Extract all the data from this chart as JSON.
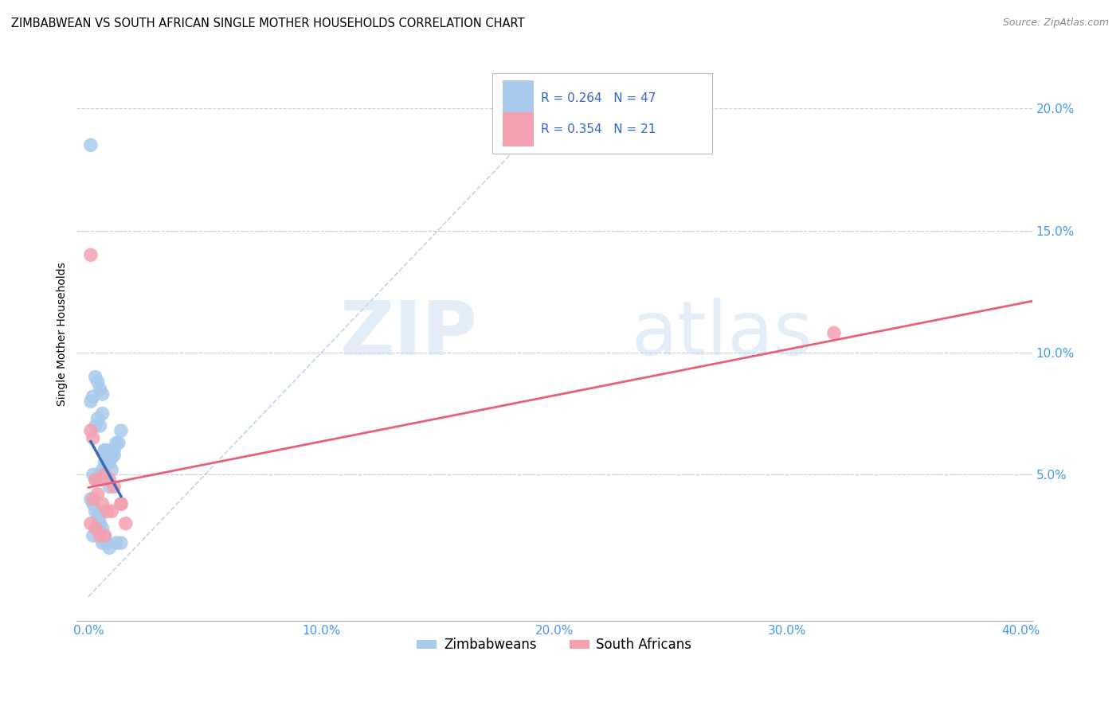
{
  "title": "ZIMBABWEAN VS SOUTH AFRICAN SINGLE MOTHER HOUSEHOLDS CORRELATION CHART",
  "source": "Source: ZipAtlas.com",
  "ylabel": "Single Mother Households",
  "xlim": [
    -0.005,
    0.405
  ],
  "ylim": [
    -0.01,
    0.225
  ],
  "xticks": [
    0.0,
    0.1,
    0.2,
    0.3,
    0.4
  ],
  "yticks": [
    0.05,
    0.1,
    0.15,
    0.2
  ],
  "xtick_labels": [
    "0.0%",
    "10.0%",
    "20.0%",
    "30.0%",
    "40.0%"
  ],
  "ytick_labels": [
    "5.0%",
    "10.0%",
    "15.0%",
    "20.0%"
  ],
  "legend_label1": "Zimbabweans",
  "legend_label2": "South Africans",
  "R1": 0.264,
  "N1": 47,
  "R2": 0.354,
  "N2": 21,
  "color_zim": "#a8caec",
  "color_sa": "#f4a0b0",
  "color_zim_line": "#3a6bb5",
  "color_sa_line": "#e8607a",
  "color_diag": "#b8d0ee",
  "watermark_zip": "ZIP",
  "watermark_atlas": "atlas",
  "zim_x": [
    0.001,
    0.002,
    0.003,
    0.004,
    0.005,
    0.006,
    0.007,
    0.008,
    0.009,
    0.01,
    0.011,
    0.012,
    0.013,
    0.014,
    0.003,
    0.004,
    0.005,
    0.006,
    0.007,
    0.008,
    0.009,
    0.01,
    0.011,
    0.002,
    0.003,
    0.005,
    0.006,
    0.007,
    0.008,
    0.009,
    0.001,
    0.002,
    0.003,
    0.004,
    0.005,
    0.006,
    0.007,
    0.008,
    0.002,
    0.003,
    0.004,
    0.005,
    0.006,
    0.009,
    0.012,
    0.014,
    0.001
  ],
  "zim_y": [
    0.08,
    0.082,
    0.09,
    0.088,
    0.085,
    0.083,
    0.06,
    0.06,
    0.058,
    0.057,
    0.06,
    0.063,
    0.063,
    0.068,
    0.07,
    0.073,
    0.07,
    0.075,
    0.06,
    0.055,
    0.055,
    0.052,
    0.058,
    0.05,
    0.048,
    0.05,
    0.052,
    0.055,
    0.048,
    0.045,
    0.04,
    0.038,
    0.035,
    0.033,
    0.03,
    0.028,
    0.025,
    0.022,
    0.025,
    0.028,
    0.03,
    0.033,
    0.022,
    0.02,
    0.022,
    0.022,
    0.185
  ],
  "sa_x": [
    0.001,
    0.002,
    0.003,
    0.005,
    0.007,
    0.009,
    0.011,
    0.014,
    0.002,
    0.004,
    0.006,
    0.008,
    0.01,
    0.014,
    0.001,
    0.003,
    0.005,
    0.007,
    0.32,
    0.001,
    0.016
  ],
  "sa_y": [
    0.068,
    0.065,
    0.048,
    0.048,
    0.05,
    0.048,
    0.045,
    0.038,
    0.04,
    0.042,
    0.038,
    0.035,
    0.035,
    0.038,
    0.03,
    0.028,
    0.025,
    0.025,
    0.108,
    0.14,
    0.03
  ]
}
